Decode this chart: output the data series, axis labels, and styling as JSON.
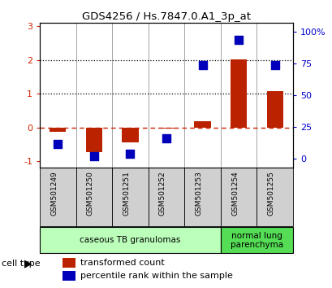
{
  "title": "GDS4256 / Hs.7847.0.A1_3p_at",
  "samples": [
    "GSM501249",
    "GSM501250",
    "GSM501251",
    "GSM501252",
    "GSM501253",
    "GSM501254",
    "GSM501255"
  ],
  "transformed_count": [
    -0.12,
    -0.72,
    -0.45,
    -0.03,
    0.18,
    2.02,
    1.08
  ],
  "percentile_rank_pct": [
    12,
    2,
    4,
    16,
    74,
    94,
    74
  ],
  "ylim_left": [
    -1.2,
    3.1
  ],
  "ylim_right": [
    -7.14,
    107.14
  ],
  "yticks_left": [
    -1,
    0,
    1,
    2,
    3
  ],
  "yticks_right": [
    0,
    25,
    50,
    75,
    100
  ],
  "ytick_labels_left": [
    "-1",
    "0",
    "1",
    "2",
    "3"
  ],
  "ytick_labels_right": [
    "0",
    "25",
    "50",
    "75",
    "100%"
  ],
  "hlines_dotted": [
    1,
    2
  ],
  "bar_color": "#bb2200",
  "dot_color": "#0000bb",
  "zero_line_color": "#cc2200",
  "cell_types": [
    {
      "label": "caseous TB granulomas",
      "span": [
        0,
        5
      ],
      "color": "#bbffbb"
    },
    {
      "label": "normal lung\nparenchyma",
      "span": [
        5,
        7
      ],
      "color": "#55dd55"
    }
  ],
  "cell_type_label": "cell type",
  "legend_bar_label": "transformed count",
  "legend_dot_label": "percentile rank within the sample"
}
